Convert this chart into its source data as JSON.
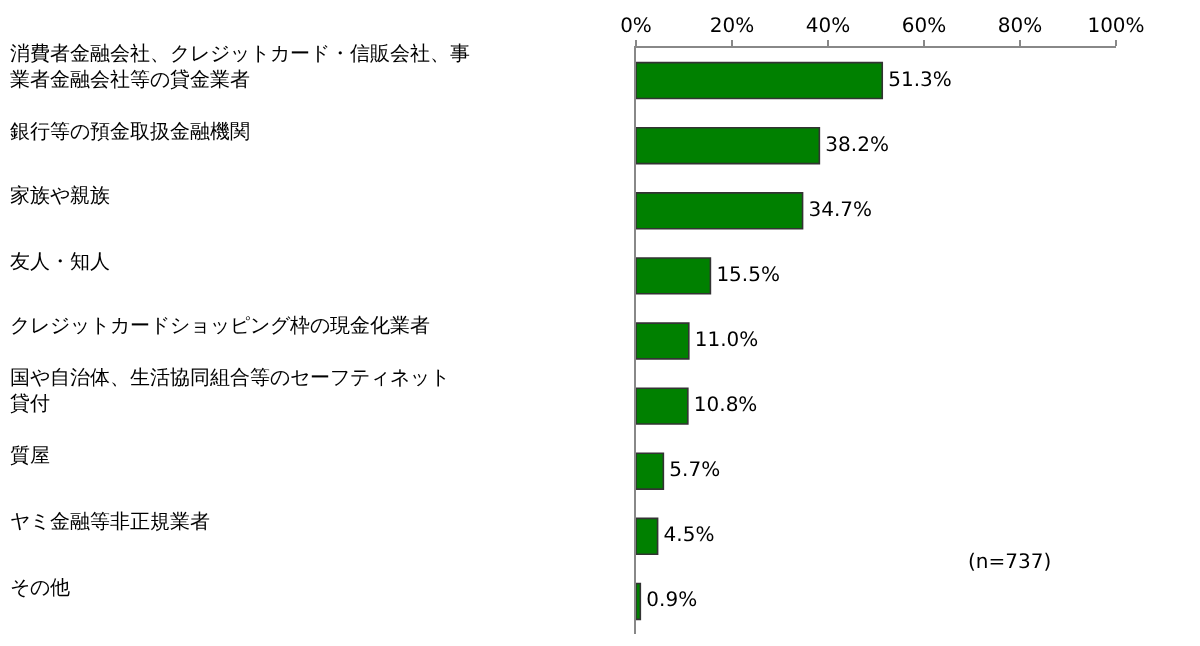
{
  "chart_data": {
    "type": "bar",
    "orientation": "horizontal",
    "categories": [
      "消費者金融会社、クレジットカード・信販会社、事業者金融会社等の貸金業者",
      "銀行等の預金取扱金融機関",
      "家族や親族",
      "友人・知人",
      "クレジットカードショッピング枠の現金化業者",
      "国や自治体、生活協同組合等のセーフティネット貸付",
      "質屋",
      "ヤミ金融等非正規業者",
      "その他"
    ],
    "values": [
      51.3,
      38.2,
      34.7,
      15.5,
      11.0,
      10.8,
      5.7,
      4.5,
      0.9
    ],
    "value_labels": [
      "51.3%",
      "38.2%",
      "34.7%",
      "15.5%",
      "11.0%",
      "10.8%",
      "5.7%",
      "4.5%",
      "0.9%"
    ],
    "color": "#008000",
    "x2lim": [
      0,
      100
    ],
    "x2ticks": [
      {
        "value": 0,
        "label": "0%"
      },
      {
        "value": 20,
        "label": "20%"
      },
      {
        "value": 40,
        "label": "40%"
      },
      {
        "value": 60,
        "label": "60%"
      },
      {
        "value": 80,
        "label": "80%"
      },
      {
        "value": 100,
        "label": "100%"
      }
    ],
    "annotations": [
      "(n=737)"
    ],
    "legend": false
  }
}
